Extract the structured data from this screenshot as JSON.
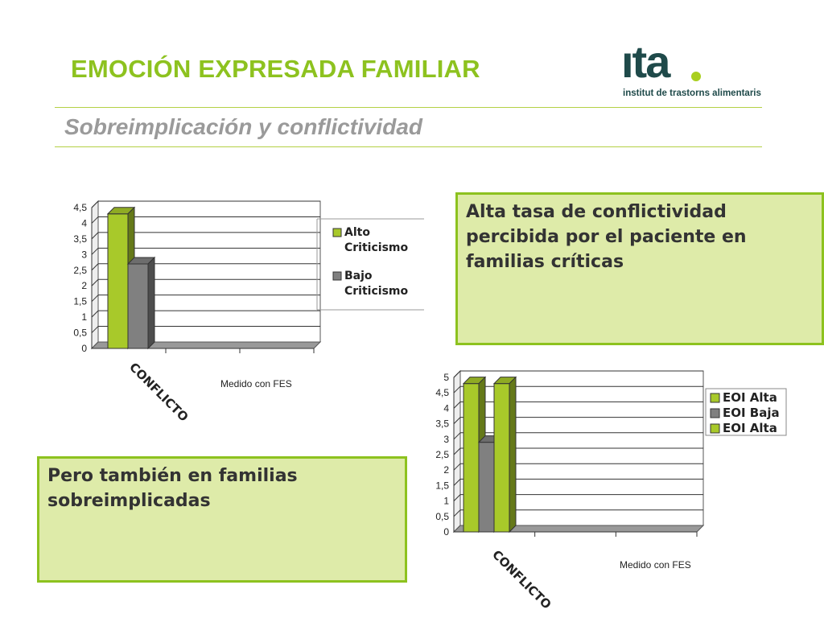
{
  "header": {
    "title": "EMOCIÓN EXPRESADA FAMILIAR",
    "subtitle": "Sobreimplicación y conflictividad"
  },
  "logo": {
    "mark": "ıta",
    "tagline": "institut de trastorns alimentaris"
  },
  "callouts": {
    "top_right": "Alta tasa de conflictividad percibida por el paciente en familias críticas",
    "bottom_left": "Pero también en familias sobreimplicadas"
  },
  "colors": {
    "green": "#a8c92a",
    "gray": "#808080",
    "accent": "#8dc21f"
  },
  "chart_data": [
    {
      "type": "bar",
      "categories": [
        "CONFLICTO"
      ],
      "series": [
        {
          "name": "Alto Criticismo",
          "legend_lines": [
            "Alto",
            "Criticismo"
          ],
          "values": [
            4.3
          ],
          "color": "#a8c92a"
        },
        {
          "name": "Bajo Criticismo",
          "legend_lines": [
            "Bajo",
            "Criticismo"
          ],
          "values": [
            2.7
          ],
          "color": "#808080"
        }
      ],
      "ylim": [
        0,
        4.5
      ],
      "yticks": [
        "0",
        "0,5",
        "1",
        "1,5",
        "2",
        "2,5",
        "3",
        "3,5",
        "4",
        "4,5"
      ],
      "note": "Medido con FES",
      "grid": true,
      "legend": "right"
    },
    {
      "type": "bar",
      "categories": [
        "CONFLICTO"
      ],
      "series": [
        {
          "name": "EOI Alta",
          "values": [
            4.8
          ],
          "color": "#a8c92a"
        },
        {
          "name": "EOI Baja",
          "values": [
            2.9
          ],
          "color": "#808080"
        },
        {
          "name": "EOI Alta",
          "values": [
            4.8
          ],
          "color": "#a8c92a"
        }
      ],
      "ylim": [
        0,
        5
      ],
      "yticks": [
        "0",
        "0,5",
        "1",
        "1,5",
        "2",
        "2,5",
        "3",
        "3,5",
        "4",
        "4,5",
        "5"
      ],
      "note": "Medido con FES",
      "grid": true,
      "legend": "right"
    }
  ]
}
